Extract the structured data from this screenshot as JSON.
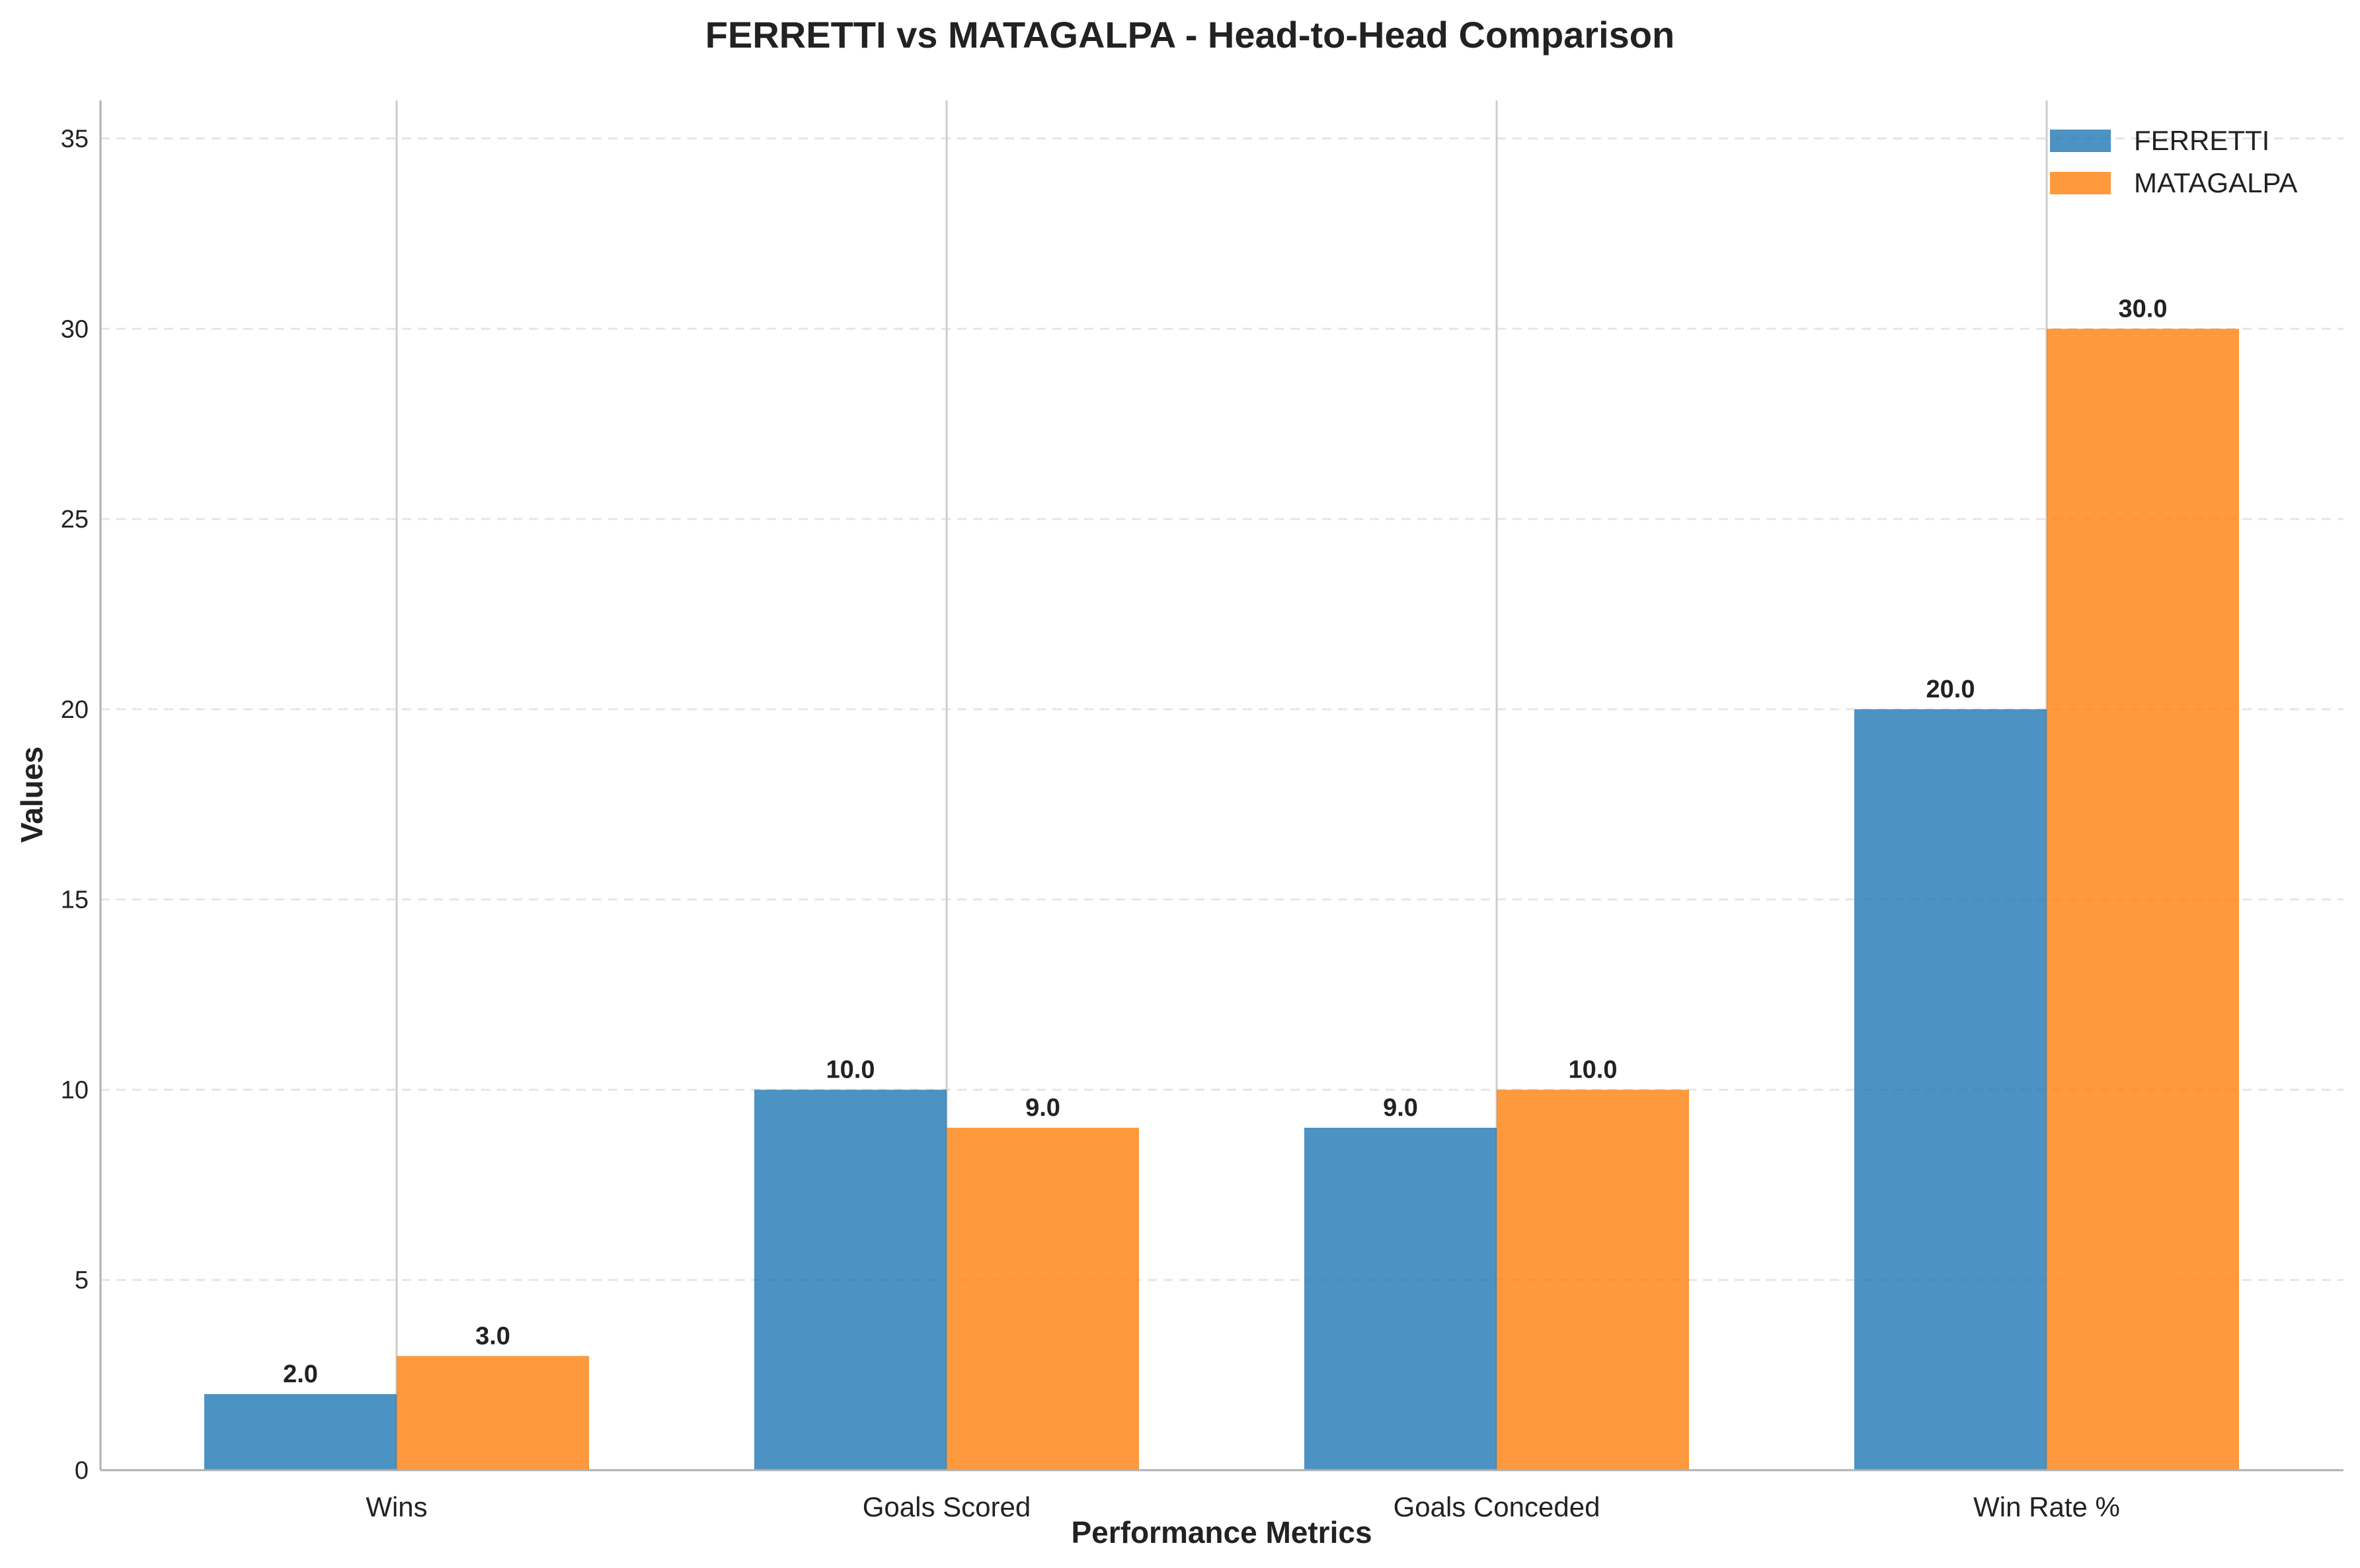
{
  "chart_data": {
    "type": "bar",
    "title": "FERRETTI vs MATAGALPA - Head-to-Head Comparison",
    "xlabel": "Performance Metrics",
    "ylabel": "Values",
    "categories": [
      "Wins",
      "Goals Scored",
      "Goals Conceded",
      "Win Rate %"
    ],
    "series": [
      {
        "name": "FERRETTI",
        "color": "#1f77b4",
        "values": [
          2.0,
          10.0,
          9.0,
          20.0
        ]
      },
      {
        "name": "MATAGALPA",
        "color": "#ff7f0e",
        "values": [
          3.0,
          9.0,
          10.0,
          30.0
        ]
      }
    ],
    "ylim": [
      0,
      36
    ],
    "yticks": [
      "0",
      "5",
      "10",
      "15",
      "20",
      "25",
      "30",
      "35"
    ],
    "data_labels": [
      [
        "2.0",
        "10.0",
        "9.0",
        "20.0"
      ],
      [
        "3.0",
        "9.0",
        "10.0",
        "30.0"
      ]
    ],
    "grid": "y dashed, x at category centers",
    "legend_position": "top-right"
  }
}
